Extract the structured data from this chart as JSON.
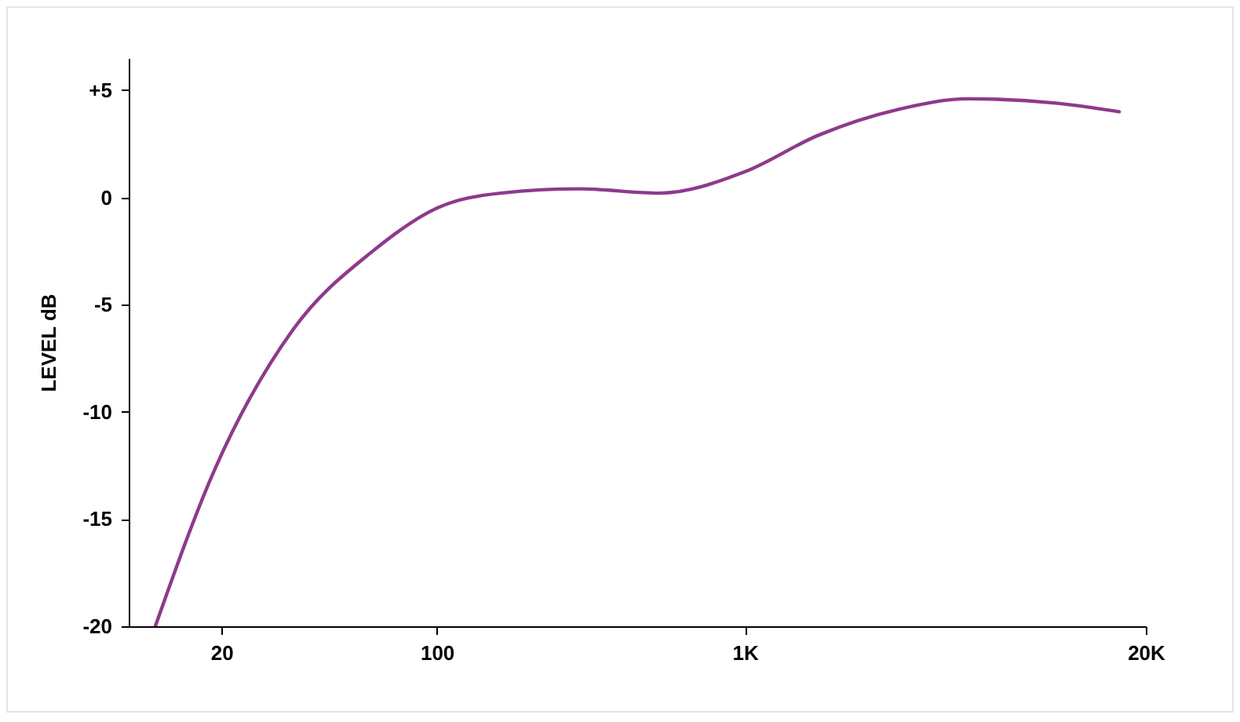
{
  "chart_data": {
    "type": "line",
    "ylabel": "LEVEL dB",
    "log": "x",
    "grid": false,
    "marker": "none",
    "line_style": "solid",
    "xlim": [
      10,
      20000
    ],
    "ylim": [
      -20,
      6.5
    ],
    "xticks": [
      20,
      100,
      {
        "value": 1000,
        "label": "1K"
      },
      {
        "value": 20000,
        "label": "20K"
      }
    ],
    "yticks": [
      -20,
      -15,
      -10,
      -5,
      0,
      {
        "value": 5,
        "label": "+5"
      }
    ],
    "x": [
      12.2,
      19,
      34,
      62,
      100,
      161,
      291,
      527,
      1000,
      1730,
      3130,
      5330,
      10200,
      16400
    ],
    "series": [
      {
        "color": "#8e3a8c",
        "values": [
          -20,
          -12.7,
          -6.2,
          -2.5,
          -0.5,
          0.2,
          0.4,
          0.2,
          1.2,
          2.9,
          4.1,
          4.6,
          4.4,
          4.0
        ]
      }
    ]
  }
}
